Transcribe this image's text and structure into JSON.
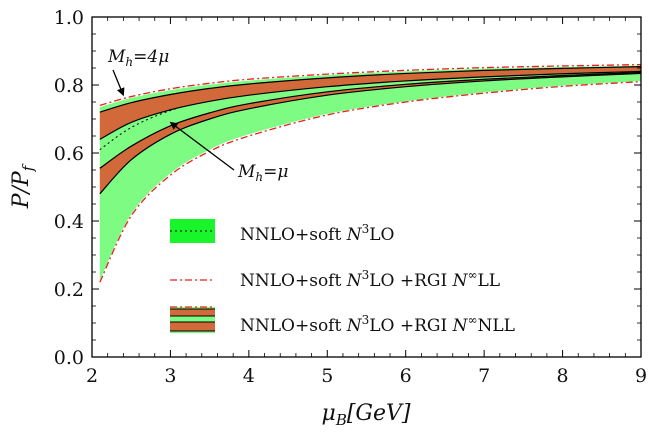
{
  "chart_data": {
    "type": "line",
    "xlabel": "μ_B[GeV]",
    "ylabel": "P/P_f",
    "xlim": [
      2,
      9
    ],
    "ylim": [
      0.0,
      1.0
    ],
    "xticks": [
      "2",
      "3",
      "4",
      "5",
      "6",
      "7",
      "8",
      "9"
    ],
    "yticks": [
      "0.0",
      "0.2",
      "0.4",
      "0.6",
      "0.8",
      "1.0"
    ],
    "x": [
      2.1,
      2.5,
      3.0,
      3.5,
      4.0,
      5.0,
      6.0,
      7.0,
      8.0,
      9.0
    ],
    "series": [
      {
        "name": "NNLO+soft N3LO",
        "kind": "band",
        "color": "#7dfb82",
        "upper": [
          0.735,
          0.762,
          0.785,
          0.801,
          0.813,
          0.829,
          0.84,
          0.848,
          0.853,
          0.857
        ],
        "lower": [
          0.225,
          0.42,
          0.54,
          0.61,
          0.655,
          0.715,
          0.752,
          0.778,
          0.798,
          0.812
        ],
        "central": [
          0.61,
          0.675,
          0.725,
          0.755,
          0.775,
          0.802,
          0.82,
          0.832,
          0.84,
          0.847
        ]
      },
      {
        "name": "NNLO+soft N3LO +RGI N∞LL",
        "kind": "dashdot-lines",
        "color": "#e8201c",
        "upper": [
          0.74,
          0.766,
          0.789,
          0.805,
          0.817,
          0.832,
          0.843,
          0.851,
          0.856,
          0.86
        ],
        "lower": [
          0.22,
          0.415,
          0.535,
          0.605,
          0.65,
          0.712,
          0.75,
          0.776,
          0.796,
          0.81
        ]
      },
      {
        "name": "NNLO+soft N3LO +RGI N∞NLL (M_h=4μ)",
        "kind": "band",
        "color": "#d2693a",
        "upper": [
          0.72,
          0.748,
          0.772,
          0.79,
          0.803,
          0.821,
          0.834,
          0.843,
          0.849,
          0.854
        ],
        "lower": [
          0.64,
          0.69,
          0.727,
          0.752,
          0.77,
          0.795,
          0.812,
          0.824,
          0.833,
          0.84
        ]
      },
      {
        "name": "NNLO+soft N3LO +RGI N∞NLL (M_h=μ)",
        "kind": "band",
        "color": "#d2693a",
        "upper": [
          0.555,
          0.62,
          0.68,
          0.718,
          0.745,
          0.78,
          0.802,
          0.817,
          0.828,
          0.837
        ],
        "lower": [
          0.48,
          0.58,
          0.655,
          0.7,
          0.73,
          0.77,
          0.795,
          0.812,
          0.824,
          0.834
        ]
      }
    ],
    "legend": [
      {
        "label_pre": "NNLO+soft ",
        "label_n": "N",
        "label_sup1": "3",
        "label_post": "LO",
        "label_extra": ""
      },
      {
        "label_pre": "NNLO+soft ",
        "label_n": "N",
        "label_sup1": "3",
        "label_post": "LO +RGI ",
        "label_extra": "N∞LL"
      },
      {
        "label_pre": "NNLO+soft ",
        "label_n": "N",
        "label_sup1": "3",
        "label_post": "LO +RGI ",
        "label_extra": "N∞NLL"
      }
    ],
    "annotations": [
      {
        "text": "M_h=4μ",
        "points_to": [
          2.4,
          0.77
        ]
      },
      {
        "text": "M_h=μ",
        "points_to": [
          3.0,
          0.69
        ]
      }
    ],
    "legend_position": "bottom-center",
    "grid": false
  }
}
